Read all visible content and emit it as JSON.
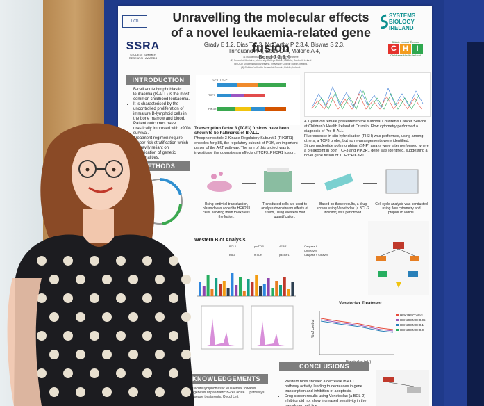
{
  "poster": {
    "title_line1": "Unravelling the molecular effects",
    "title_line2": "of a novel leukaemia-related gene fusion",
    "authors_line1": "Grady E 1,2, Dias T 2,3, McCarthy P 2,3,4, Biswas S 2,3, Trinquand A 4, Betts D 4, Malone A 4,",
    "authors_line2": "Bond J 2,3,4",
    "affiliations": [
      "(1) Student Summer Research Awards Programme",
      "(2) School of Medicine, University College Dublin, Belfield, Dublin 4, Ireland",
      "(3) UCD Systems Biology Ireland, University College Dublin, Ireland.",
      "(4) Children's Health Ireland at Crumlin, Dublin, Ireland."
    ],
    "logos": {
      "ssra": "SSRA",
      "ssra_sub_1": "STUDENT SUMMER",
      "ssra_sub_2": "RESEARCH AWARDS",
      "sbi_1": "SYSTEMS",
      "sbi_2": "BIOLOGY",
      "sbi_3": "IRELAND",
      "chi_top": "Sláinte Leanaí Éireann",
      "chi": [
        "C",
        "H",
        "I"
      ],
      "chi_sub": "Children's Health Ireland"
    },
    "sections": {
      "introduction": "INTRODUCTION",
      "methods": "METHODS",
      "conclusions": "CONCLUSIONS",
      "acknowledgements": "KNOWLEDGEMENTS"
    },
    "intro": [
      "B-cell acute lymphoblastic leukaemia (B-ALL) is the most common childhood leukaemia.",
      "It is characterised by the uncontrolled proliferation of immature B-lymphoid cells in the bone marrow and blood.",
      "Patient outcomes have drastically improved with >90% survival.",
      "Treatment regimen require proper risk stratification which is heavily reliant on identification of genetic abnormalities."
    ],
    "mid_text_title": "Transcription factor 3 (TCF3) fusions have been shown to be hallmarks of B-ALL.",
    "mid_text": "Phosphoinositide-3-Kinase Regulatory Subunit 1 (PIK3R1) encodes for p85, the regulatory subunit of PI3K, an important player of the AKT pathway. The aim of this project was to investigate the downstream effects of TCF3::PIK3R1 fusion.",
    "right_text_1": "A 1-year-old female presented to the National Children's Cancer Service at Children's Health Ireland at Crumlin. Flow cytometry performed a diagnosis of Pre-B-ALL.",
    "right_text_2": "Fluorescence in situ hybridisation (FISH) was performed, using among others, a TCF3 probe, but no re-arrangements were identified.",
    "right_text_3": "Single nucleotide polymorphism (SNP) arrays were later performed where a breakpoint in both TCF3 and PIK3R1 gene was identified, suggesting a novel gene fusion of TCF3::PIK3R1.",
    "method_steps": [
      "Using lentiviral transduction, plasmid was added to HEK293 cells, allowing them to express the fusion.",
      "Transduced cells are used to analyse downstream effects of fusion, using Western Blot quantification.",
      "Based on these results, a drug screen using Venetoclax (a BCL-2 inhibitor) was performed.",
      "Cell cycle analysis was conducted using flow cytometry and propidium iodide."
    ],
    "gene_labels": [
      "TCF3 (TRCP)",
      "TCF3",
      "PIK3R1"
    ],
    "western_blot_title": "Western Blot Analysis",
    "wb_legend": [
      "BCL2",
      "BAD",
      "pmTOR",
      "mTOR",
      "4EBP1",
      "p4EBP1",
      "Caspase 9 Uncleaved",
      "Caspase 9 Cleaved"
    ],
    "venetoclax_title": "Venetoclax Treatment",
    "venetoclax_xlabel": "Venetoclax (nM)",
    "venetoclax_ylabel": "% of control",
    "venetoclax_legend": [
      "HEK293 Control",
      "HEK293 MOI 0.05",
      "HEK293 MOI 0.1",
      "HEK293 MOI 0.0"
    ],
    "conclusions": [
      "Western blots showed a decrease in AKT pathway activity, leading to decreases in gene transcription and inhibition of apoptosis.",
      "Drug screen results using Venetoclax (a BCL-2) inhibitor did not show increased sensitivity in the transduced cell line."
    ],
    "acknowledgements": "B-cell acute lymphoblastic leukaemia: towards ... Pathogenesis of paediatric B-cell acute ... pathways and disease treatments. Oncol Lett"
  }
}
